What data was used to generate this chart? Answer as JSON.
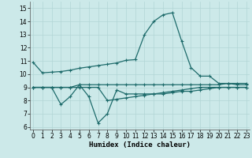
{
  "xlabel": "Humidex (Indice chaleur)",
  "x_ticks": [
    0,
    1,
    2,
    3,
    4,
    5,
    6,
    7,
    8,
    9,
    10,
    11,
    12,
    13,
    14,
    15,
    16,
    17,
    18,
    19,
    20,
    21,
    22,
    23
  ],
  "ylim": [
    5.8,
    15.5
  ],
  "yticks": [
    6,
    7,
    8,
    9,
    10,
    11,
    12,
    13,
    14,
    15
  ],
  "xlim": [
    -0.3,
    23.3
  ],
  "background_color": "#cce9e9",
  "grid_color": "#b2d5d5",
  "line_color": "#1e6b6b",
  "series": [
    {
      "x": [
        0,
        1,
        2,
        3,
        4,
        5,
        6,
        7,
        8,
        9,
        10,
        11,
        12,
        13,
        14,
        15,
        16,
        17,
        18,
        19,
        20,
        21,
        22,
        23
      ],
      "y": [
        10.9,
        10.1,
        10.15,
        10.2,
        10.3,
        10.45,
        10.55,
        10.65,
        10.75,
        10.85,
        11.05,
        11.1,
        13.0,
        14.0,
        14.5,
        14.65,
        12.5,
        10.5,
        9.85,
        9.85,
        9.3,
        9.3,
        9.2,
        9.2
      ]
    },
    {
      "x": [
        0,
        1,
        2,
        3,
        4,
        5,
        6,
        7,
        8,
        9,
        10,
        11,
        12,
        13,
        14,
        15,
        16,
        17,
        18,
        19,
        20,
        21,
        22,
        23
      ],
      "y": [
        9.0,
        9.0,
        9.0,
        7.7,
        8.3,
        9.2,
        8.3,
        6.3,
        7.0,
        8.8,
        8.5,
        8.5,
        8.5,
        8.5,
        8.5,
        8.6,
        8.7,
        8.7,
        8.8,
        8.9,
        9.0,
        9.0,
        9.0,
        9.0
      ]
    },
    {
      "x": [
        0,
        1,
        2,
        3,
        4,
        5,
        6,
        7,
        8,
        9,
        10,
        11,
        12,
        13,
        14,
        15,
        16,
        17,
        18,
        19,
        20,
        21,
        22,
        23
      ],
      "y": [
        9.0,
        9.0,
        9.0,
        9.0,
        9.0,
        9.2,
        9.2,
        9.2,
        9.2,
        9.2,
        9.2,
        9.2,
        9.2,
        9.2,
        9.2,
        9.2,
        9.2,
        9.2,
        9.2,
        9.2,
        9.2,
        9.3,
        9.3,
        9.3
      ]
    },
    {
      "x": [
        0,
        1,
        2,
        3,
        4,
        5,
        6,
        7,
        8,
        9,
        10,
        11,
        12,
        13,
        14,
        15,
        16,
        17,
        18,
        19,
        20,
        21,
        22,
        23
      ],
      "y": [
        9.0,
        9.0,
        9.0,
        9.0,
        9.0,
        9.0,
        9.0,
        9.0,
        8.0,
        8.1,
        8.2,
        8.3,
        8.4,
        8.5,
        8.6,
        8.7,
        8.8,
        8.9,
        9.0,
        9.0,
        9.0,
        9.0,
        9.0,
        9.0
      ]
    }
  ]
}
